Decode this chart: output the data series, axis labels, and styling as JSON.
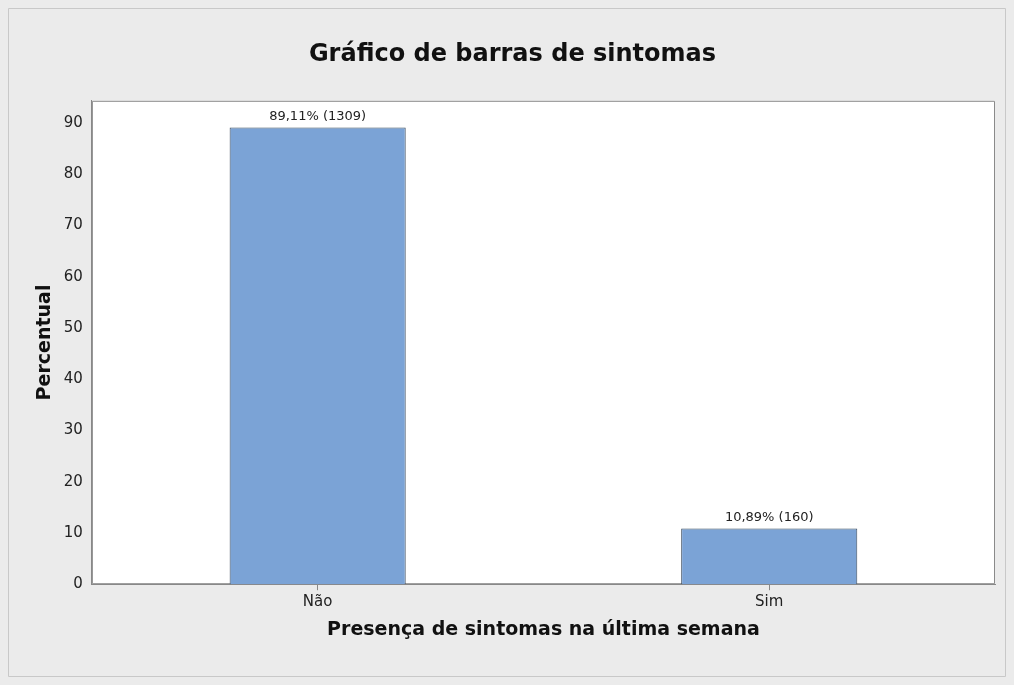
{
  "chart_data": {
    "type": "bar",
    "title": "Gráfico de barras de sintomas",
    "xlabel": "Presença de sintomas na última semana",
    "ylabel": "Percentual",
    "categories": [
      "Não",
      "Sim"
    ],
    "values": [
      89.11,
      10.89
    ],
    "value_labels": [
      "89,11% (1309)",
      "10,89% (160)"
    ],
    "color": "#7ba3d6",
    "ylim": [
      0,
      94.3
    ],
    "yticks": [
      0,
      10,
      20,
      30,
      40,
      50,
      60,
      70,
      80,
      90
    ],
    "grid": false,
    "legend": false
  }
}
